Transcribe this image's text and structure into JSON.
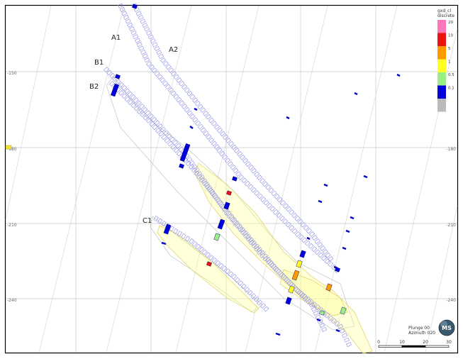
{
  "labels": {
    "a1": "A1",
    "a2": "A2",
    "b1": "B1",
    "b2": "B2",
    "c1": "C1"
  },
  "elevations": {
    "left": [
      "-150",
      "-180",
      "-210",
      "-240"
    ],
    "right": [
      "-180",
      "-210",
      "-240"
    ]
  },
  "legend": {
    "title_line1": "gxd_cl",
    "title_line2": "discrete",
    "items": [
      {
        "label": "20",
        "color": "#ff77bb"
      },
      {
        "label": "10",
        "color": "#ee1111"
      },
      {
        "label": "5",
        "color": "#ff9900"
      },
      {
        "label": "1",
        "color": "#ffff22"
      },
      {
        "label": "0.5",
        "color": "#99ee88"
      },
      {
        "label": "0.1",
        "color": "#0000dd"
      },
      {
        "label": "",
        "color": "#bbbbbb"
      }
    ]
  },
  "view": {
    "plunge": "Plunge 00",
    "azimuth": "Azimuth 020"
  },
  "scale_bar": {
    "ticks": [
      "0",
      "10",
      "20",
      "30"
    ]
  },
  "logo": {
    "text": "MS"
  }
}
